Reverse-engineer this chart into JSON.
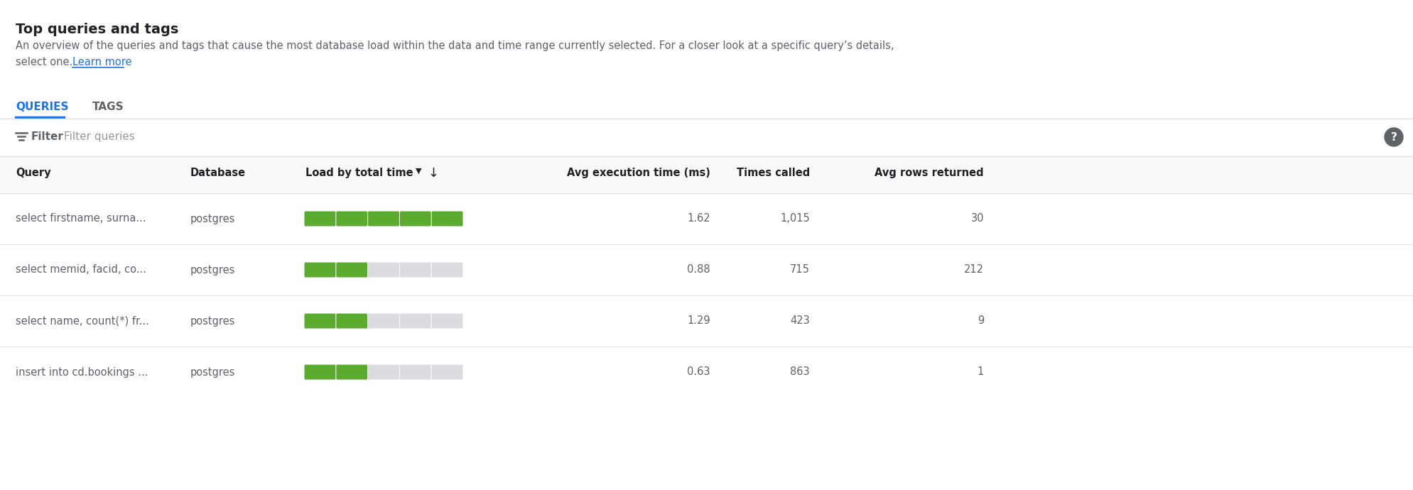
{
  "title": "Top queries and tags",
  "subtitle_line1": "An overview of the queries and tags that cause the most database load within the data and time range currently selected. For a closer look at a specific query’s details,",
  "subtitle_line2": "select one. ",
  "learn_more": "Learn more",
  "tab_queries": "QUERIES",
  "tab_tags": "TAGS",
  "filter_label": "Filter",
  "filter_placeholder": "Filter queries",
  "col_query": "Query",
  "col_database": "Database",
  "col_load": "Load by total time",
  "col_load_sort": "▾",
  "col_avg_exec": "Avg execution time (ms)",
  "col_times": "Times called",
  "col_avg_rows": "Avg rows returned",
  "rows": [
    {
      "query": "select firstname, surna...",
      "database": "postgres",
      "load_green": 1.0,
      "avg_exec_time": "1.62",
      "times_called": "1,015",
      "avg_rows": "30"
    },
    {
      "query": "select memid, facid, co...",
      "database": "postgres",
      "load_green": 0.4,
      "avg_exec_time": "0.88",
      "times_called": "715",
      "avg_rows": "212"
    },
    {
      "query": "select name, count(*) fr...",
      "database": "postgres",
      "load_green": 0.36,
      "avg_exec_time": "1.29",
      "times_called": "423",
      "avg_rows": "9"
    },
    {
      "query": "insert into cd.bookings ...",
      "database": "postgres",
      "load_green": 0.34,
      "avg_exec_time": "0.63",
      "times_called": "863",
      "avg_rows": "1"
    }
  ],
  "bg": "#ffffff",
  "title_color": "#202124",
  "subtitle_color": "#5f6368",
  "link_color": "#1a73e8",
  "tab_active_color": "#1a73e8",
  "tab_inactive_color": "#5f6368",
  "tab_underline_color": "#1a73e8",
  "header_bg": "#f8f9fa",
  "divider_color": "#e0e0e0",
  "header_text_color": "#202124",
  "cell_text_color": "#5f6368",
  "bar_green": "#5aab2e",
  "bar_gray": "#dadce0",
  "filter_color": "#5f6368",
  "help_bg": "#5f6368",
  "help_fg": "#ffffff"
}
